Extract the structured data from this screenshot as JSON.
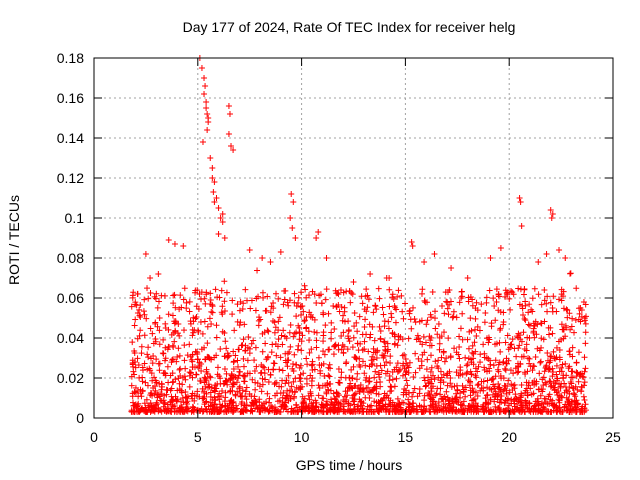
{
  "chart_data": {
    "type": "scatter",
    "title": "Day 177 of 2024, Rate Of TEC Index for receiver helg",
    "xlabel": "GPS time / hours",
    "ylabel": "ROTI / TECUs",
    "xlim": [
      0,
      25
    ],
    "ylim": [
      0,
      0.18
    ],
    "x_ticks": [
      0,
      5,
      10,
      15,
      20,
      25
    ],
    "x_tick_labels": [
      "0",
      "5",
      "10",
      "15",
      "20",
      "25"
    ],
    "y_ticks": [
      0,
      0.02,
      0.04,
      0.06,
      0.08,
      0.1,
      0.12,
      0.14,
      0.16,
      0.18
    ],
    "y_tick_labels": [
      "0",
      "0.02",
      "0.04",
      "0.06",
      "0.08",
      "0.1",
      "0.12",
      "0.14",
      "0.16",
      "0.18"
    ],
    "grid": true,
    "marker": "+",
    "series_color": "#ff0000",
    "data_range_hours": [
      1.8,
      23.7
    ],
    "series": [
      {
        "name": "ROTI",
        "x": [
          5.1,
          5.2,
          5.3,
          5.35,
          5.4,
          5.45,
          5.5,
          5.3,
          5.4,
          5.5,
          5.25,
          5.45,
          5.6,
          5.7,
          5.8,
          5.9,
          6.0,
          6.1,
          6.2,
          6.3,
          6.5,
          6.55,
          6.5,
          6.6,
          6.7,
          5.7,
          5.75,
          5.8,
          6.2,
          6.0,
          9.5,
          9.6,
          9.45,
          9.55,
          9.7,
          10.8,
          10.7,
          20.5,
          20.55,
          20.6,
          22.0,
          22.1,
          22.05,
          15.3,
          15.35,
          3.6,
          3.9,
          4.3,
          2.5,
          2.7,
          3.1,
          7.5,
          8.1,
          8.5,
          9.0,
          11.2,
          12.5,
          13.3,
          14.1,
          15.9,
          16.4,
          17.2,
          18.0,
          19.1,
          19.6,
          21.4,
          21.8,
          22.4,
          22.7,
          23.6,
          23.5
        ],
        "y": [
          0.18,
          0.175,
          0.17,
          0.166,
          0.155,
          0.152,
          0.148,
          0.162,
          0.158,
          0.15,
          0.138,
          0.144,
          0.13,
          0.125,
          0.118,
          0.11,
          0.105,
          0.1,
          0.102,
          0.09,
          0.156,
          0.152,
          0.142,
          0.136,
          0.134,
          0.12,
          0.113,
          0.108,
          0.098,
          0.092,
          0.112,
          0.108,
          0.1,
          0.095,
          0.09,
          0.093,
          0.09,
          0.11,
          0.108,
          0.096,
          0.104,
          0.102,
          0.1,
          0.088,
          0.086,
          0.089,
          0.087,
          0.086,
          0.082,
          0.07,
          0.072,
          0.084,
          0.08,
          0.078,
          0.083,
          0.08,
          0.068,
          0.072,
          0.07,
          0.078,
          0.082,
          0.075,
          0.07,
          0.08,
          0.085,
          0.078,
          0.082,
          0.084,
          0.08,
          0.058,
          0.054
        ]
      }
    ]
  }
}
